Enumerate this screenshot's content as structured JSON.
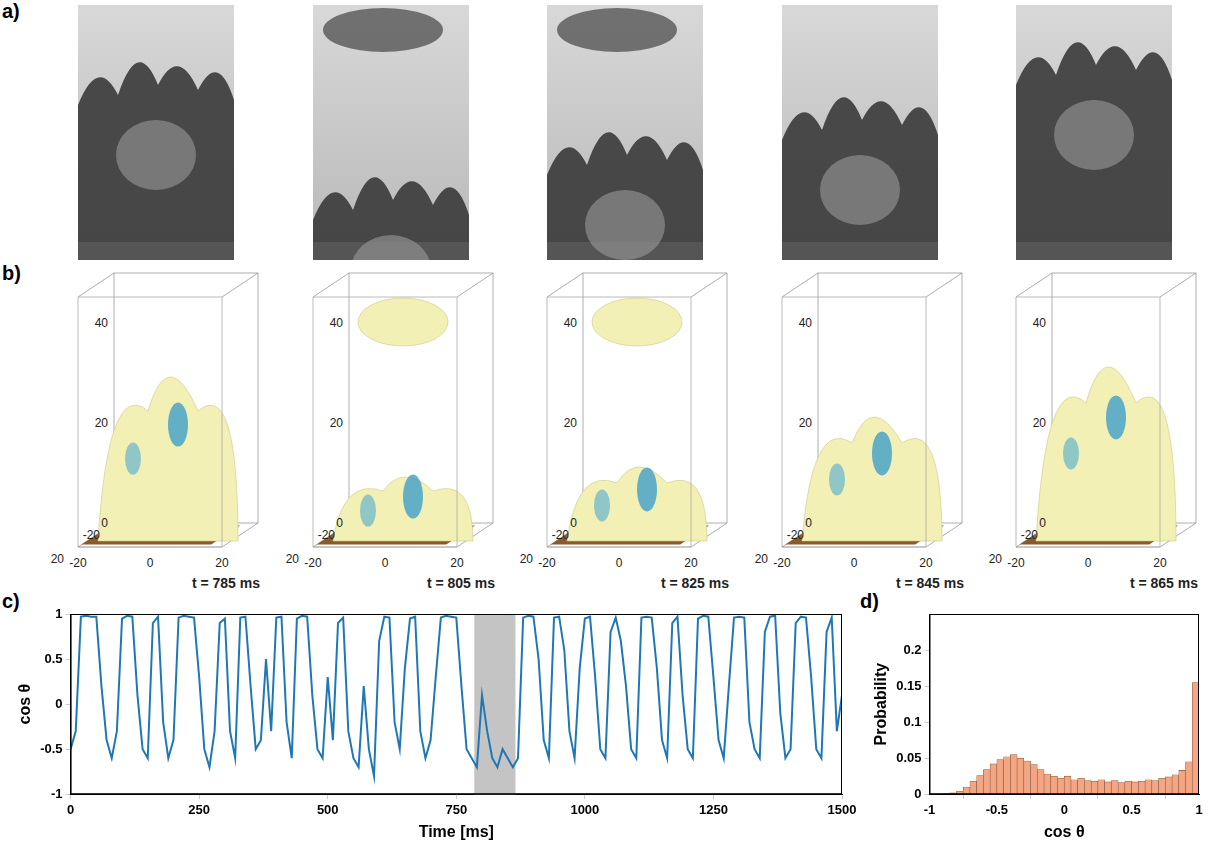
{
  "panel_a": {
    "letter": "a)"
  },
  "panel_b": {
    "letter": "b)",
    "frames": [
      "t = 785 ms",
      "t = 805 ms",
      "t = 825 ms",
      "t = 845 ms",
      "t = 865 ms"
    ],
    "xlim": [
      -20,
      20
    ],
    "xticks": [
      -20,
      0,
      20
    ],
    "ylim": [
      -20,
      20
    ],
    "yticks": [
      -20,
      20
    ],
    "zlim": [
      0,
      50
    ],
    "zticks": [
      0,
      20,
      40
    ]
  },
  "chart_data": [
    {
      "letter": "c)",
      "type": "line",
      "x_label": "Time [ms]",
      "y_label": "cos θ",
      "color": "#1f78b4",
      "shaded_x": [
        785,
        865
      ],
      "xlim": [
        0,
        1500
      ],
      "xticks": [
        0,
        250,
        500,
        750,
        1000,
        1250,
        1500
      ],
      "ylim": [
        -1,
        1
      ],
      "yticks": [
        -1,
        -0.5,
        0,
        0.5,
        1
      ],
      "grid": false,
      "x": [
        0,
        10,
        20,
        30,
        40,
        50,
        60,
        70,
        80,
        90,
        100,
        110,
        120,
        130,
        140,
        150,
        160,
        170,
        180,
        190,
        200,
        210,
        220,
        230,
        240,
        250,
        260,
        270,
        280,
        290,
        300,
        310,
        320,
        330,
        340,
        350,
        360,
        370,
        380,
        390,
        400,
        410,
        420,
        430,
        440,
        450,
        460,
        470,
        480,
        490,
        500,
        510,
        520,
        530,
        540,
        550,
        560,
        570,
        580,
        590,
        600,
        610,
        620,
        630,
        640,
        650,
        660,
        670,
        680,
        690,
        700,
        710,
        720,
        730,
        740,
        750,
        760,
        770,
        780,
        790,
        800,
        810,
        820,
        830,
        840,
        850,
        860,
        870,
        880,
        890,
        900,
        910,
        920,
        930,
        940,
        950,
        960,
        970,
        980,
        990,
        1000,
        1010,
        1020,
        1030,
        1040,
        1050,
        1060,
        1070,
        1080,
        1090,
        1100,
        1110,
        1120,
        1130,
        1140,
        1150,
        1160,
        1170,
        1180,
        1190,
        1200,
        1210,
        1220,
        1230,
        1240,
        1250,
        1260,
        1270,
        1280,
        1290,
        1300,
        1310,
        1320,
        1330,
        1340,
        1350,
        1360,
        1370,
        1380,
        1390,
        1400,
        1410,
        1420,
        1430,
        1440,
        1450,
        1460,
        1470,
        1480,
        1490,
        1500
      ],
      "values": [
        -0.5,
        -0.3,
        0.97,
        0.98,
        0.97,
        0.97,
        0.2,
        -0.4,
        -0.6,
        -0.3,
        0.95,
        0.98,
        0.97,
        0.1,
        -0.5,
        -0.6,
        0.9,
        0.97,
        -0.2,
        -0.6,
        -0.4,
        0.96,
        0.98,
        0.97,
        0.96,
        0.3,
        -0.5,
        -0.7,
        -0.3,
        0.9,
        0.95,
        -0.3,
        -0.6,
        0.96,
        0.97,
        0.2,
        -0.5,
        -0.4,
        0.5,
        -0.3,
        0.96,
        0.97,
        -0.2,
        -0.6,
        0.95,
        0.98,
        0.97,
        0.1,
        -0.5,
        -0.6,
        0.3,
        -0.4,
        0.9,
        0.96,
        -0.3,
        -0.6,
        -0.7,
        0.2,
        -0.5,
        -0.8,
        0.7,
        0.97,
        0.96,
        -0.2,
        -0.5,
        0.4,
        0.95,
        0.97,
        -0.3,
        -0.6,
        -0.4,
        0.3,
        0.96,
        0.98,
        0.97,
        0.96,
        0.2,
        -0.5,
        -0.6,
        -0.7,
        0.1,
        -0.3,
        -0.6,
        -0.7,
        -0.5,
        -0.6,
        -0.7,
        -0.6,
        0.96,
        0.98,
        0.97,
        0.5,
        -0.4,
        -0.6,
        0.96,
        0.97,
        0.6,
        -0.3,
        -0.6,
        0.4,
        0.95,
        0.97,
        0.3,
        -0.5,
        -0.6,
        0.8,
        0.96,
        0.7,
        0.2,
        -0.5,
        -0.6,
        0.96,
        0.97,
        0.96,
        0.4,
        -0.4,
        -0.6,
        0.9,
        0.97,
        0.1,
        -0.5,
        -0.6,
        0.95,
        0.98,
        0.97,
        0.3,
        -0.4,
        -0.6,
        0.2,
        0.96,
        0.97,
        0.96,
        -0.2,
        -0.5,
        -0.6,
        0.8,
        0.97,
        0.98,
        -0.1,
        -0.6,
        -0.5,
        0.9,
        0.97,
        0.96,
        0.3,
        -0.5,
        -0.6,
        0.8,
        0.96,
        -0.3,
        0.1
      ]
    },
    {
      "letter": "d)",
      "type": "histogram",
      "x_label": "cos θ",
      "y_label": "Probability",
      "color": "#f4a582",
      "xlim": [
        -1,
        1
      ],
      "xticks": [
        -1,
        -0.5,
        0,
        0.5,
        1
      ],
      "ylim": [
        0,
        0.25
      ],
      "yticks": [
        0,
        0.05,
        0.1,
        0.15,
        0.2
      ],
      "grid": false,
      "bins": [
        -1,
        -0.95,
        -0.9,
        -0.85,
        -0.8,
        -0.75,
        -0.7,
        -0.65,
        -0.6,
        -0.55,
        -0.5,
        -0.45,
        -0.4,
        -0.35,
        -0.3,
        -0.25,
        -0.2,
        -0.15,
        -0.1,
        -0.05,
        0,
        0.05,
        0.1,
        0.15,
        0.2,
        0.25,
        0.3,
        0.35,
        0.4,
        0.45,
        0.5,
        0.55,
        0.6,
        0.65,
        0.7,
        0.75,
        0.8,
        0.85,
        0.9,
        0.95,
        1
      ],
      "values": [
        0,
        0,
        0.001,
        0.002,
        0.004,
        0.01,
        0.018,
        0.026,
        0.034,
        0.042,
        0.048,
        0.052,
        0.055,
        0.05,
        0.046,
        0.041,
        0.034,
        0.028,
        0.025,
        0.022,
        0.025,
        0.02,
        0.022,
        0.019,
        0.018,
        0.02,
        0.017,
        0.019,
        0.016,
        0.018,
        0.017,
        0.018,
        0.02,
        0.019,
        0.022,
        0.024,
        0.027,
        0.033,
        0.045,
        0.155
      ]
    }
  ]
}
